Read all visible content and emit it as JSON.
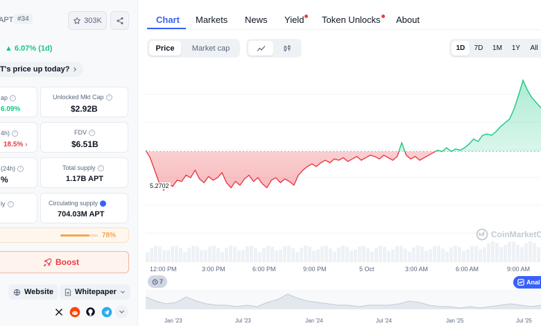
{
  "coin": {
    "ticker": "APT",
    "rank": "#34",
    "watchlist_count": "303K",
    "price_change": "6.07% (1d)",
    "why_prompt": "T's price up today?"
  },
  "stats": [
    {
      "label": "ap",
      "value": "6.09%",
      "value_color": "#16c784"
    },
    {
      "label": "Unlocked Mkt Cap",
      "value": "$2.92B"
    },
    {
      "label": "4h)",
      "value": "18.5%",
      "value_color": "#ea3943"
    },
    {
      "label": "FDV",
      "value": "$6.51B"
    },
    {
      "label": "(24h)",
      "value": "%"
    },
    {
      "label": "Total supply",
      "value": "1.17B APT"
    },
    {
      "label": "ly",
      "value": ""
    },
    {
      "label": "Circulating supply",
      "value": "704.03M APT"
    }
  ],
  "supply_progress": {
    "percent_label": "78%",
    "fraction": 0.78
  },
  "boost_label": "Boost",
  "links": {
    "website": "Website",
    "whitepaper": "Whitepaper"
  },
  "social_icons": [
    "x-icon",
    "reddit-icon",
    "github-icon",
    "telegram-icon",
    "chevron-down-icon"
  ],
  "tabs": [
    {
      "label": "Chart",
      "active": true,
      "dot": false
    },
    {
      "label": "Markets",
      "active": false,
      "dot": false
    },
    {
      "label": "News",
      "active": false,
      "dot": false
    },
    {
      "label": "Yield",
      "active": false,
      "dot": true
    },
    {
      "label": "Token Unlocks",
      "active": false,
      "dot": true
    },
    {
      "label": "About",
      "active": false,
      "dot": false
    }
  ],
  "chart_controls": {
    "price_label": "Price",
    "marketcap_label": "Market cap",
    "ranges": [
      "1D",
      "7D",
      "1M",
      "1Y",
      "All"
    ],
    "selected_range": "1D"
  },
  "events_count": "7",
  "analyze_label": "Anal",
  "watermark_text": "CoinMarketC",
  "colors": {
    "accent": "#3861fb",
    "up": "#16c784",
    "down": "#ea3943"
  },
  "chart_data": {
    "type": "line",
    "open_price": 5.2702,
    "open_label": "5.2702",
    "x_tick_labels": [
      "12:00 PM",
      "3:00 PM",
      "6:00 PM",
      "9:00 PM",
      "5 Oct",
      "3:00 AM",
      "6:00 AM",
      "9:00 AM"
    ],
    "y": [
      5.28,
      5.22,
      5.12,
      5.02,
      4.96,
      5.01,
      4.99,
      5.04,
      5.03,
      5.08,
      5.06,
      5.12,
      5.05,
      5.02,
      5.07,
      5.04,
      5.06,
      5.1,
      5.02,
      4.98,
      5.03,
      5.0,
      5.05,
      5.08,
      5.03,
      5.06,
      5.01,
      4.98,
      5.04,
      5.06,
      5.02,
      5.05,
      5.03,
      5.0,
      5.08,
      5.12,
      5.15,
      5.17,
      5.15,
      5.18,
      5.2,
      5.18,
      5.21,
      5.2,
      5.22,
      5.19,
      5.21,
      5.23,
      5.2,
      5.22,
      5.24,
      5.23,
      5.21,
      5.24,
      5.22,
      5.2,
      5.23,
      5.34,
      5.24,
      5.21,
      5.23,
      5.2,
      5.22,
      5.24,
      5.26,
      5.28,
      5.27,
      5.3,
      5.27,
      5.29,
      5.28,
      5.3,
      5.33,
      5.37,
      5.35,
      5.4,
      5.41,
      5.4,
      5.43,
      5.47,
      5.5,
      5.53,
      5.61,
      5.72,
      5.84,
      5.76,
      5.7,
      5.66,
      5.62
    ],
    "nav_x_labels": [
      "Jan '23",
      "Jul '23",
      "Jan '24",
      "Jul '24",
      "Jan '25",
      "Jul '25"
    ],
    "nav_values": [
      12,
      9,
      7,
      8,
      12,
      9,
      7,
      6,
      6,
      5,
      6,
      5,
      8,
      10,
      14,
      11,
      9,
      8,
      7,
      6,
      6,
      5,
      6,
      6,
      6,
      7,
      9,
      8,
      6,
      5,
      5,
      4,
      5,
      4,
      5,
      6,
      7,
      6,
      5,
      6
    ]
  }
}
